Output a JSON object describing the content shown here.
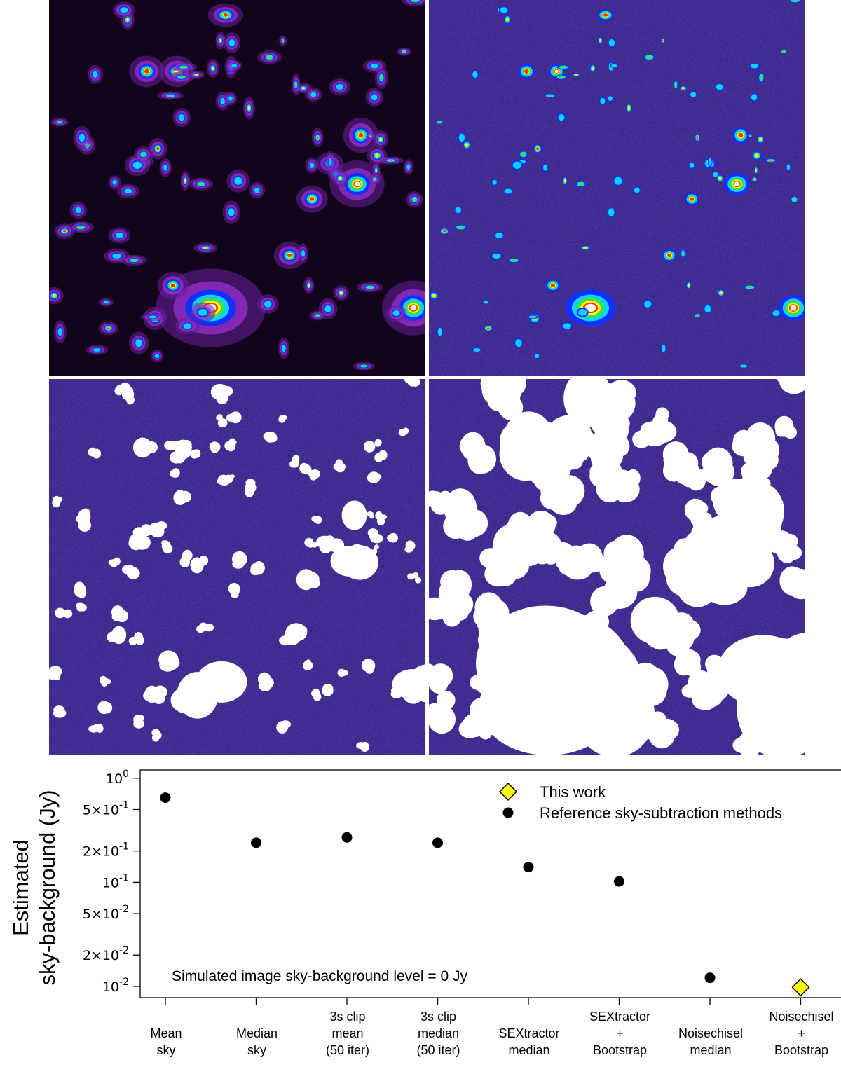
{
  "colors": {
    "noise_background": "#2a1a7a",
    "mask": "#ffffff",
    "smoothed_background": "#12041a"
  },
  "image_panels": [
    {
      "name": "smoothed-image",
      "colormap": "rainbow-on-purple"
    },
    {
      "name": "raw-image",
      "colormap": "rainbow-on-blue-noise"
    },
    {
      "name": "compact-mask",
      "colormap": "white-mask-on-noise"
    },
    {
      "name": "extended-mask",
      "colormap": "white-mask-on-noise"
    }
  ],
  "chart_data": {
    "type": "scatter",
    "title": "",
    "xlabel": "",
    "ylabel": [
      "Estimated",
      "sky-background (Jy)"
    ],
    "yscale": "log",
    "ylim": [
      0.0078,
      1.2
    ],
    "yticks": [
      {
        "value": 1,
        "base": "10",
        "exp": "0"
      },
      {
        "value": 0.5,
        "mant": "5",
        "base": "10",
        "exp": "-1"
      },
      {
        "value": 0.2,
        "mant": "2",
        "base": "10",
        "exp": "-1"
      },
      {
        "value": 0.1,
        "base": "10",
        "exp": "-1"
      },
      {
        "value": 0.05,
        "mant": "5",
        "base": "10",
        "exp": "-2"
      },
      {
        "value": 0.02,
        "mant": "2",
        "base": "10",
        "exp": "-2"
      },
      {
        "value": 0.01,
        "base": "10",
        "exp": "-2"
      }
    ],
    "categories": [
      [
        "Mean",
        "sky"
      ],
      [
        "Median",
        "sky"
      ],
      [
        "3s clip",
        "mean",
        "(50 iter)"
      ],
      [
        "3s clip",
        "median",
        "(50 iter)"
      ],
      [
        "SEXtractor",
        "median"
      ],
      [
        "SEXtractor",
        "+",
        "Bootstrap"
      ],
      [
        "Noisechisel",
        "median"
      ],
      [
        "Noisechisel",
        "+",
        "Bootstrap"
      ]
    ],
    "series": [
      {
        "name": "Reference sky-subtraction methods",
        "marker": "circle",
        "color": "#000000",
        "points": [
          {
            "category": 0,
            "value": 0.65
          },
          {
            "category": 1,
            "value": 0.24
          },
          {
            "category": 2,
            "value": 0.27
          },
          {
            "category": 3,
            "value": 0.24
          },
          {
            "category": 4,
            "value": 0.14
          },
          {
            "category": 5,
            "value": 0.102
          },
          {
            "category": 6,
            "value": 0.0121
          }
        ]
      },
      {
        "name": "This work",
        "marker": "diamond",
        "color": "#ffff00",
        "points": [
          {
            "category": 7,
            "value": 0.0098
          }
        ]
      }
    ],
    "legend": {
      "placement": "top-right",
      "entries": [
        "This work",
        "Reference sky-subtraction methods"
      ]
    },
    "annotation": "Simulated image sky-background level = 0 Jy",
    "grid": false
  }
}
